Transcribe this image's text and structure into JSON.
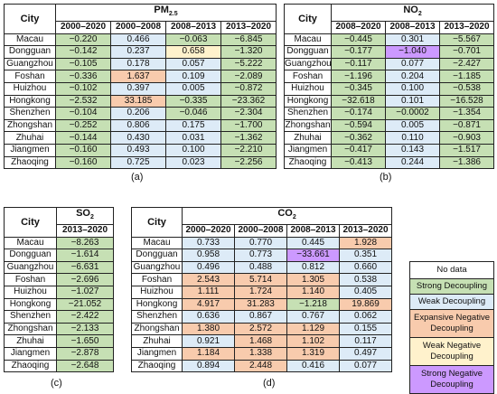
{
  "city_label": "City",
  "tables": [
    {
      "id": "a",
      "caption": "(a)",
      "title_main": "PM",
      "title_sub": "2.5",
      "columns": [
        "2000–2020",
        "2000–2008",
        "2008–2013",
        "2013–2020"
      ],
      "rows": [
        {
          "city": "Macau",
          "values": [
            "−0.220",
            "0.466",
            "−0.063",
            "−6.845"
          ],
          "states": [
            "strong",
            "weak",
            "strong",
            "strong"
          ]
        },
        {
          "city": "Dongguan",
          "values": [
            "−0.142",
            "0.237",
            "0.658",
            "−1.320"
          ],
          "states": [
            "strong",
            "weak",
            "weakneg",
            "strong"
          ]
        },
        {
          "city": "Guangzhou",
          "values": [
            "−0.105",
            "0.178",
            "0.057",
            "−5.222"
          ],
          "states": [
            "strong",
            "weak",
            "weak",
            "strong"
          ]
        },
        {
          "city": "Foshan",
          "values": [
            "−0.336",
            "1.637",
            "0.109",
            "−2.089"
          ],
          "states": [
            "strong",
            "expneg",
            "weak",
            "strong"
          ]
        },
        {
          "city": "Huizhou",
          "values": [
            "−0.102",
            "0.397",
            "0.005",
            "−0.872"
          ],
          "states": [
            "strong",
            "weak",
            "weak",
            "strong"
          ]
        },
        {
          "city": "Hongkong",
          "values": [
            "−2.532",
            "33.185",
            "−0.335",
            "−23.362"
          ],
          "states": [
            "strong",
            "expneg",
            "strong",
            "strong"
          ]
        },
        {
          "city": "Shenzhen",
          "values": [
            "−0.104",
            "0.206",
            "−0.046",
            "−2.304"
          ],
          "states": [
            "strong",
            "weak",
            "strong",
            "strong"
          ]
        },
        {
          "city": "Zhongshan",
          "values": [
            "−0.252",
            "0.806",
            "0.175",
            "−1.700"
          ],
          "states": [
            "strong",
            "weak",
            "weak",
            "strong"
          ]
        },
        {
          "city": "Zhuhai",
          "values": [
            "−0.144",
            "0.430",
            "0.031",
            "−1.362"
          ],
          "states": [
            "strong",
            "weak",
            "weak",
            "strong"
          ]
        },
        {
          "city": "Jiangmen",
          "values": [
            "−0.160",
            "0.493",
            "0.100",
            "−2.210"
          ],
          "states": [
            "strong",
            "weak",
            "weak",
            "strong"
          ]
        },
        {
          "city": "Zhaoqing",
          "values": [
            "−0.160",
            "0.725",
            "0.023",
            "−2.256"
          ],
          "states": [
            "strong",
            "weak",
            "weak",
            "strong"
          ]
        }
      ]
    },
    {
      "id": "b",
      "caption": "(b)",
      "title_main": "NO",
      "title_sub": "2",
      "columns": [
        "2008–2020",
        "2008–2013",
        "2013–2020"
      ],
      "rows": [
        {
          "city": "Macau",
          "values": [
            "−0.445",
            "0.301",
            "−5.567"
          ],
          "states": [
            "strong",
            "weak",
            "strong"
          ]
        },
        {
          "city": "Dongguan",
          "values": [
            "−0.177",
            "−1.040",
            "−0.701"
          ],
          "states": [
            "strong",
            "strongneg",
            "strong"
          ]
        },
        {
          "city": "Guangzhou",
          "values": [
            "−0.117",
            "0.077",
            "−2.427"
          ],
          "states": [
            "strong",
            "weak",
            "strong"
          ]
        },
        {
          "city": "Foshan",
          "values": [
            "−1.196",
            "0.204",
            "−1.185"
          ],
          "states": [
            "strong",
            "weak",
            "strong"
          ]
        },
        {
          "city": "Huizhou",
          "values": [
            "−0.345",
            "0.100",
            "−0.538"
          ],
          "states": [
            "strong",
            "weak",
            "strong"
          ]
        },
        {
          "city": "Hongkong",
          "values": [
            "−32.618",
            "0.101",
            "−16.528"
          ],
          "states": [
            "strong",
            "weak",
            "strong"
          ]
        },
        {
          "city": "Shenzhen",
          "values": [
            "−0.174",
            "−0.0002",
            "−1.354"
          ],
          "states": [
            "strong",
            "strong",
            "strong"
          ]
        },
        {
          "city": "Zhongshan",
          "values": [
            "−0.594",
            "0.005",
            "−0.871"
          ],
          "states": [
            "strong",
            "weak",
            "strong"
          ]
        },
        {
          "city": "Zhuhai",
          "values": [
            "−0.362",
            "0.110",
            "−0.903"
          ],
          "states": [
            "strong",
            "weak",
            "strong"
          ]
        },
        {
          "city": "Jiangmen",
          "values": [
            "−0.417",
            "0.143",
            "−1.517"
          ],
          "states": [
            "strong",
            "weak",
            "strong"
          ]
        },
        {
          "city": "Zhaoqing",
          "values": [
            "−0.413",
            "0.244",
            "−1.386"
          ],
          "states": [
            "strong",
            "weak",
            "strong"
          ]
        }
      ]
    },
    {
      "id": "c",
      "caption": "(c)",
      "title_main": "SO",
      "title_sub": "2",
      "columns": [
        "2013–2020"
      ],
      "rows": [
        {
          "city": "Macau",
          "values": [
            "−8.263"
          ],
          "states": [
            "strong"
          ]
        },
        {
          "city": "Dongguan",
          "values": [
            "−1.614"
          ],
          "states": [
            "strong"
          ]
        },
        {
          "city": "Guangzhou",
          "values": [
            "−6.631"
          ],
          "states": [
            "strong"
          ]
        },
        {
          "city": "Foshan",
          "values": [
            "−2.696"
          ],
          "states": [
            "strong"
          ]
        },
        {
          "city": "Huizhou",
          "values": [
            "−1.027"
          ],
          "states": [
            "strong"
          ]
        },
        {
          "city": "Hongkong",
          "values": [
            "−21.052"
          ],
          "states": [
            "strong"
          ]
        },
        {
          "city": "Shenzhen",
          "values": [
            "−2.422"
          ],
          "states": [
            "strong"
          ]
        },
        {
          "city": "Zhongshan",
          "values": [
            "−2.133"
          ],
          "states": [
            "strong"
          ]
        },
        {
          "city": "Zhuhai",
          "values": [
            "−1.650"
          ],
          "states": [
            "strong"
          ]
        },
        {
          "city": "Jiangmen",
          "values": [
            "−2.878"
          ],
          "states": [
            "strong"
          ]
        },
        {
          "city": "Zhaoqing",
          "values": [
            "−2.648"
          ],
          "states": [
            "strong"
          ]
        }
      ]
    },
    {
      "id": "d",
      "caption": "(d)",
      "title_main": "CO",
      "title_sub": "2",
      "columns": [
        "2000–2020",
        "2000–2008",
        "2008–2013",
        "2013–2020"
      ],
      "rows": [
        {
          "city": "Macau",
          "values": [
            "0.733",
            "0.770",
            "0.445",
            "1.928"
          ],
          "states": [
            "weak",
            "weak",
            "weak",
            "expneg"
          ]
        },
        {
          "city": "Dongguan",
          "values": [
            "0.958",
            "0.773",
            "−33.661",
            "0.351"
          ],
          "states": [
            "weak",
            "weak",
            "strongneg",
            "weak"
          ]
        },
        {
          "city": "Guangzhou",
          "values": [
            "0.496",
            "0.488",
            "0.812",
            "0.660"
          ],
          "states": [
            "weak",
            "weak",
            "weak",
            "weak"
          ]
        },
        {
          "city": "Foshan",
          "values": [
            "2.543",
            "5.714",
            "1.305",
            "0.538"
          ],
          "states": [
            "expneg",
            "expneg",
            "expneg",
            "weak"
          ]
        },
        {
          "city": "Huizhou",
          "values": [
            "1.111",
            "1.724",
            "1.140",
            "0.405"
          ],
          "states": [
            "expneg",
            "expneg",
            "expneg",
            "weak"
          ]
        },
        {
          "city": "Hongkong",
          "values": [
            "4.917",
            "31.283",
            "−1.218",
            "19.869"
          ],
          "states": [
            "expneg",
            "expneg",
            "strong",
            "expneg"
          ]
        },
        {
          "city": "Shenzhen",
          "values": [
            "0.636",
            "0.867",
            "0.767",
            "0.062"
          ],
          "states": [
            "weak",
            "weak",
            "weak",
            "weak"
          ]
        },
        {
          "city": "Zhongshan",
          "values": [
            "1.380",
            "2.572",
            "1.129",
            "0.155"
          ],
          "states": [
            "expneg",
            "expneg",
            "expneg",
            "weak"
          ]
        },
        {
          "city": "Zhuhai",
          "values": [
            "0.921",
            "1.468",
            "1.102",
            "0.117"
          ],
          "states": [
            "weak",
            "expneg",
            "expneg",
            "weak"
          ]
        },
        {
          "city": "Jiangmen",
          "values": [
            "1.184",
            "1.338",
            "1.319",
            "0.497"
          ],
          "states": [
            "expneg",
            "expneg",
            "expneg",
            "weak"
          ]
        },
        {
          "city": "Zhaoqing",
          "values": [
            "0.894",
            "2.448",
            "0.416",
            "0.077"
          ],
          "states": [
            "weak",
            "expneg",
            "weak",
            "weak"
          ]
        }
      ]
    }
  ],
  "legend": [
    {
      "key": "none",
      "label": "No data",
      "color": "#ffffff"
    },
    {
      "key": "strong",
      "label": "Strong Decoupling",
      "color": "#c6e0b4"
    },
    {
      "key": "weak",
      "label": "Weak Decoupling",
      "color": "#ddebf7"
    },
    {
      "key": "expneg",
      "label": "Expansive Negative Decoupling",
      "color": "#f8cbad"
    },
    {
      "key": "weakneg",
      "label": "Weak Negative Decoupling",
      "color": "#fff2cc"
    },
    {
      "key": "strongneg",
      "label": "Strong Negative Decoupling",
      "color": "#cc99ff"
    }
  ]
}
